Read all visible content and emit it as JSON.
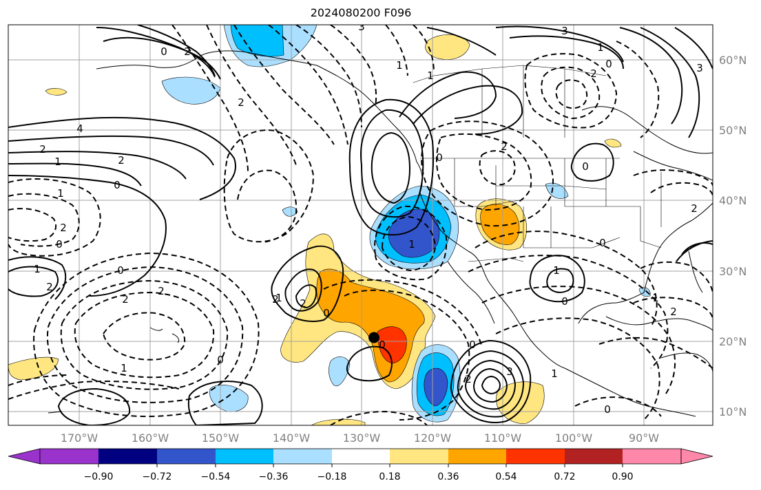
{
  "title": "2024080200 F096",
  "map": {
    "latitudes": [
      "60°N",
      "50°N",
      "40°N",
      "30°N",
      "20°N",
      "10°N"
    ],
    "longitudes": [
      "170°W",
      "160°W",
      "150°W",
      "140°W",
      "130°W",
      "120°W",
      "110°W",
      "100°W",
      "90°W"
    ],
    "contour_labels": [
      "4",
      "2",
      "1",
      "2",
      "0",
      "1",
      "2",
      "0",
      "1",
      "2",
      "2",
      "2",
      "0",
      "1",
      "2",
      "2",
      "1",
      "0",
      "0",
      "2",
      "2",
      "1",
      "0",
      "0",
      "3",
      "3",
      "1",
      "0",
      "3",
      "0",
      "2",
      "1",
      "2",
      "1",
      "0",
      "2",
      "0",
      "1",
      "0",
      "2",
      "1",
      "1",
      "0",
      "2",
      "3",
      "0"
    ],
    "marker": {
      "lon": -128.2,
      "lat": 20.5
    }
  },
  "colorbar": {
    "colors": [
      "#9933cc",
      "#000080",
      "#3355cc",
      "#00bfff",
      "#aadfff",
      "#ffffff",
      "#ffe680",
      "#ffa500",
      "#ff3300",
      "#b22222",
      "#ff88aa"
    ],
    "tick_labels": [
      "−0.90",
      "−0.72",
      "−0.54",
      "−0.36",
      "−0.18",
      "0.18",
      "0.36",
      "0.54",
      "0.72",
      "0.90"
    ]
  }
}
